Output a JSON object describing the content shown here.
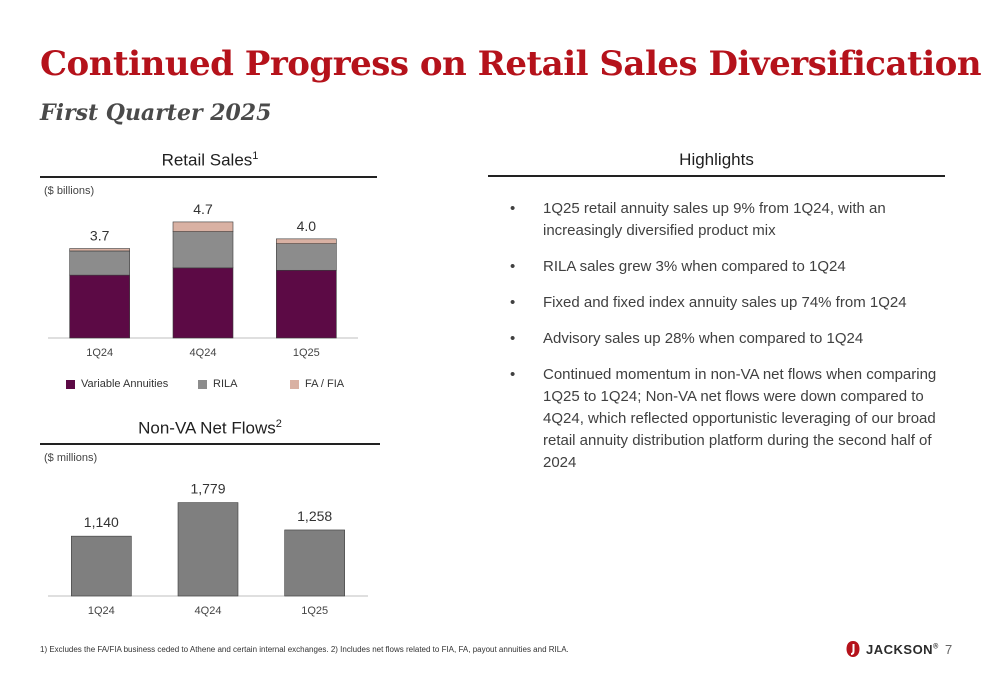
{
  "header": {
    "title": "Continued Progress on Retail Sales Diversification",
    "subtitle": "First Quarter 2025"
  },
  "retail_sales": {
    "heading": "Retail Sales",
    "heading_sup": "1",
    "units": "($ billions)",
    "legend": [
      "Variable Annuities",
      "RILA",
      "FA / FIA"
    ]
  },
  "net_flows": {
    "heading": "Non-VA Net Flows",
    "heading_sup": "2",
    "units": "($ millions)"
  },
  "highlights": {
    "heading": "Highlights",
    "bullet": "•",
    "items": [
      "1Q25 retail annuity sales up 9% from 1Q24, with an increasingly diversified product mix",
      "RILA sales grew 3% when compared to 1Q24",
      "Fixed and fixed index annuity sales up 74% from 1Q24",
      "Advisory sales up 28% when compared to 1Q24",
      "Continued momentum in non-VA net flows when comparing 1Q25 to 1Q24;  Non-VA net flows were down compared to 4Q24, which reflected opportunistic leveraging of our broad retail annuity distribution platform during the second half of 2024"
    ]
  },
  "footer": {
    "footnote": "1) Excludes the FA/FIA business ceded to Athene and certain internal exchanges. 2) Includes net flows related to FIA, FA, payout annuities and RILA.",
    "logo_text": "JACKSON",
    "logo_mark": "®",
    "page_number": "7"
  },
  "colors": {
    "title": "#b5121b",
    "variable_annuities": "#5c0a45",
    "rila": "#8c8c8c",
    "fa_fia": "#d9b1a3",
    "net_flows_bar": "#7f7f7f",
    "logo_red": "#b5121b"
  },
  "chart_data": [
    {
      "type": "bar",
      "stacked": true,
      "title": "Retail Sales",
      "ylabel": "($ billions)",
      "categories": [
        "1Q24",
        "4Q24",
        "1Q25"
      ],
      "series": [
        {
          "name": "Variable Annuities",
          "values": [
            2.6,
            2.9,
            2.8
          ]
        },
        {
          "name": "RILA",
          "values": [
            1.0,
            1.5,
            1.1
          ]
        },
        {
          "name": "FA / FIA",
          "values": [
            0.1,
            0.4,
            0.2
          ]
        }
      ],
      "totals": [
        3.7,
        4.7,
        4.0
      ],
      "total_labels": [
        "3.7",
        "4.7",
        "4.0"
      ],
      "ylim": [
        0,
        5.5
      ],
      "grid": false,
      "legend_position": "bottom"
    },
    {
      "type": "bar",
      "title": "Non-VA Net Flows",
      "ylabel": "($ millions)",
      "categories": [
        "1Q24",
        "4Q24",
        "1Q25"
      ],
      "values": [
        1140,
        1779,
        1258
      ],
      "value_labels": [
        "1,140",
        "1,779",
        "1,258"
      ],
      "ylim": [
        0,
        2400
      ],
      "grid": false
    }
  ]
}
